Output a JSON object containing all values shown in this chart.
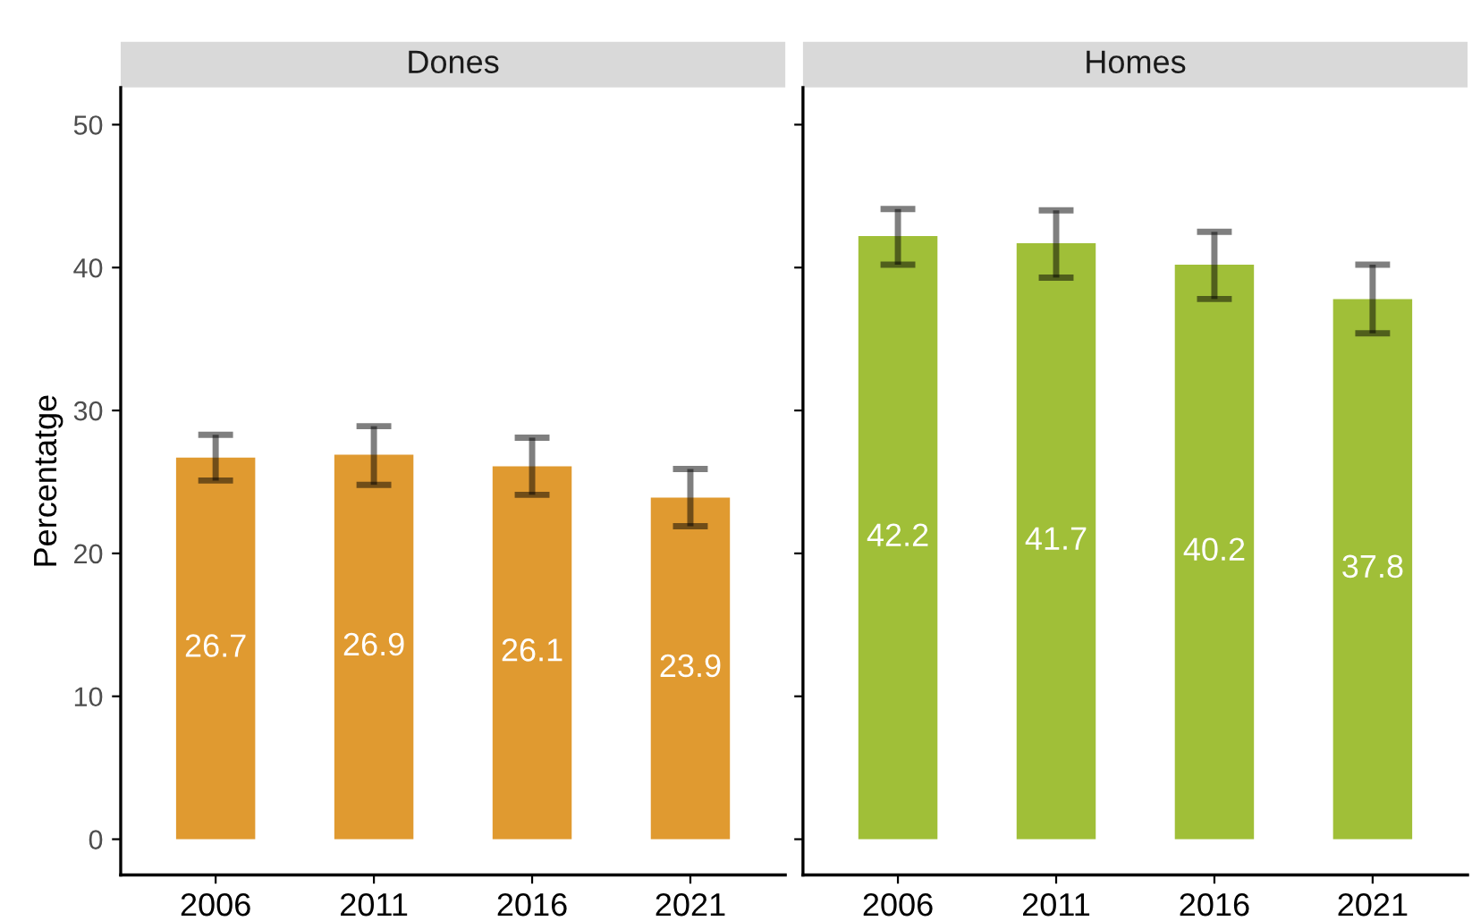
{
  "chart_data": [
    {
      "type": "bar",
      "title": "Dones",
      "ylabel": "Percentatge",
      "categories": [
        "2006",
        "2011",
        "2016",
        "2021"
      ],
      "values": [
        26.7,
        26.9,
        26.1,
        23.9
      ],
      "errors": [
        [
          25.1,
          28.3
        ],
        [
          24.8,
          28.9
        ],
        [
          24.1,
          28.1
        ],
        [
          21.9,
          25.9
        ]
      ],
      "color": "#e09a30",
      "ylim": [
        -2.5,
        52.6
      ],
      "yticks": [
        0,
        10,
        20,
        30,
        40,
        50
      ],
      "data_labels": true,
      "grid": false,
      "legend": false
    },
    {
      "type": "bar",
      "title": "Homes",
      "categories": [
        "2006",
        "2011",
        "2016",
        "2021"
      ],
      "values": [
        42.2,
        41.7,
        40.2,
        37.8
      ],
      "errors": [
        [
          40.2,
          44.1
        ],
        [
          39.3,
          44.0
        ],
        [
          37.8,
          42.5
        ],
        [
          35.4,
          40.2
        ]
      ],
      "color": "#a0bf38",
      "ylim": [
        -2.5,
        52.6
      ],
      "yticks": [
        0,
        10,
        20,
        30,
        40,
        50
      ],
      "data_labels": true,
      "grid": false,
      "legend": false,
      "tick_labels": "x"
    }
  ]
}
